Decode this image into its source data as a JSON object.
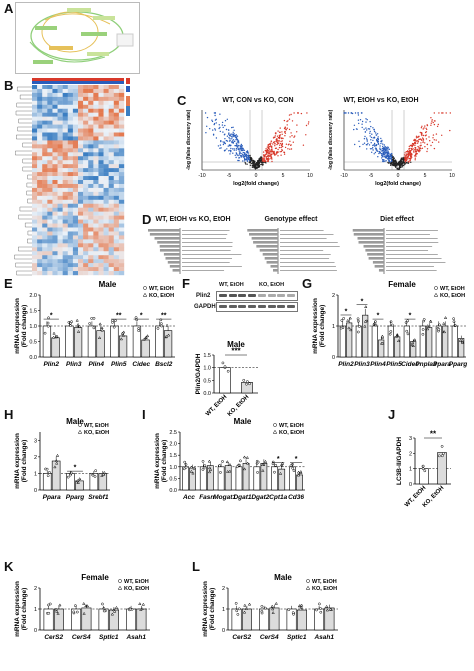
{
  "panels": [
    "A",
    "B",
    "C",
    "D",
    "E",
    "F",
    "G",
    "H",
    "I",
    "J",
    "K",
    "L"
  ],
  "colors": {
    "up": "#d8392b",
    "down": "#2a5dbb",
    "ns": "#222222",
    "heat_hi": "#e4794f",
    "heat_lo": "#3b7ec2",
    "heat_mid": "#ecf2f8"
  },
  "volcano": [
    {
      "title": "WT, CON vs KO, CON",
      "ylabel": "-log (false discovery rate)",
      "xlabel": "log2(fold change)",
      "xticks": [
        "-10",
        "-5",
        "0",
        "5",
        "10"
      ]
    },
    {
      "title": "WT, EtOH vs KO, EtOH",
      "ylabel": "-log (false discovery rate)",
      "xlabel": "log2(fold change)",
      "xticks": [
        "-10",
        "-5",
        "0",
        "5",
        "10"
      ]
    }
  ],
  "go_panels": [
    {
      "title": "WT, EtOH vs KO, EtOH"
    },
    {
      "title": "Genotype effect"
    },
    {
      "title": "Diet effect"
    }
  ],
  "western": {
    "groups": [
      "WT, EtOH",
      "KO, EtOH"
    ],
    "rows": [
      "Plin2",
      "GAPDH"
    ]
  },
  "chart_data": [
    {
      "panel": "E",
      "type": "bar",
      "title": "Male",
      "ylabel": "mRNA expression\n(Fold change)",
      "ylim": [
        0,
        2.0
      ],
      "yticks": [
        "0.0",
        "0.5",
        "1.0",
        "1.5",
        "2.0"
      ],
      "categories": [
        "Plin2",
        "Plin3",
        "Plin4",
        "Plin5",
        "Cidec",
        "Bscl2"
      ],
      "series": [
        {
          "name": "WT, EtOH",
          "values": [
            1.0,
            1.0,
            1.0,
            1.0,
            1.0,
            1.0
          ]
        },
        {
          "name": "KO, EtOH",
          "values": [
            0.62,
            0.95,
            0.85,
            0.68,
            0.55,
            0.85
          ]
        }
      ],
      "sig": [
        "*",
        "",
        "",
        "**",
        "*",
        "**"
      ]
    },
    {
      "panel": "F",
      "type": "bar",
      "title": "Male",
      "ylabel": "Plin2/GAPDH",
      "ylim": [
        0,
        1.5
      ],
      "yticks": [
        "0.0",
        "0.5",
        "1.0",
        "1.5"
      ],
      "categories": [
        "WT, EtOH",
        "KO, EtOH"
      ],
      "values": [
        1.0,
        0.42
      ],
      "sig": "***"
    },
    {
      "panel": "G",
      "type": "bar",
      "title": "Female",
      "ylabel": "mRNA expression\n(Fold change)",
      "ylim": [
        0,
        2.0
      ],
      "yticks": [
        "0",
        "1",
        "2"
      ],
      "categories": [
        "Plin2",
        "Plin3",
        "Plin4",
        "Plin5",
        "Cidec",
        "Pnpla3",
        "Ppara",
        "Pparg"
      ],
      "series": [
        {
          "name": "WT, EtOH",
          "values": [
            1.0,
            1.0,
            1.0,
            1.0,
            1.0,
            1.0,
            1.0,
            1.0
          ]
        },
        {
          "name": "KO, EtOH",
          "values": [
            1.1,
            1.35,
            0.55,
            0.65,
            0.5,
            0.95,
            1.0,
            0.6
          ]
        }
      ],
      "sig": [
        "*",
        "*",
        "*",
        "",
        "*",
        "",
        "",
        ""
      ]
    },
    {
      "panel": "H",
      "type": "bar",
      "title": "Male",
      "ylabel": "mRNA expression\n(Fold change)",
      "ylim": [
        0,
        3.5
      ],
      "yticks": [
        "0",
        "1",
        "2",
        "3"
      ],
      "categories": [
        "Ppara",
        "Pparg",
        "Srebf1"
      ],
      "series": [
        {
          "name": "WT, EtOH",
          "values": [
            1.0,
            1.0,
            1.0
          ]
        },
        {
          "name": "KO, EtOH",
          "values": [
            1.75,
            0.55,
            1.0
          ]
        }
      ],
      "sig": [
        "",
        "*",
        ""
      ]
    },
    {
      "panel": "I",
      "type": "bar",
      "title": "Male",
      "ylabel": "mRNA expression\n(Fold change)",
      "ylim": [
        0,
        2.5
      ],
      "yticks": [
        "0.0",
        "0.5",
        "1.0",
        "1.5",
        "2.0",
        "2.5"
      ],
      "categories": [
        "Acc",
        "Fasn",
        "Mogat1",
        "Dgat1",
        "Dgat2",
        "Cpt1a",
        "Cd36"
      ],
      "series": [
        {
          "name": "WT, EtOH",
          "values": [
            1.0,
            1.0,
            1.0,
            1.0,
            1.0,
            1.0,
            1.0
          ]
        },
        {
          "name": "KO, EtOH",
          "values": [
            0.95,
            1.05,
            1.05,
            1.15,
            1.15,
            0.9,
            0.65
          ]
        }
      ],
      "sig": [
        "",
        "",
        "",
        "",
        "",
        "*",
        "*"
      ]
    },
    {
      "panel": "J",
      "type": "bar",
      "title": "",
      "ylabel": "LC3B-II/GAPDH",
      "ylim": [
        0,
        3
      ],
      "yticks": [
        "0",
        "1",
        "2",
        "3"
      ],
      "categories": [
        "WT, EtOH",
        "KO, EtOH"
      ],
      "values": [
        1.0,
        2.05
      ],
      "sig": "**"
    },
    {
      "panel": "K",
      "type": "bar",
      "title": "Female",
      "ylabel": "mRNA expression\n(Fold change)",
      "ylim": [
        0,
        2.0
      ],
      "yticks": [
        "0",
        "1",
        "2"
      ],
      "categories": [
        "CerS2",
        "CerS4",
        "Sptlc1",
        "Asah1"
      ],
      "series": [
        {
          "name": "WT, EtOH",
          "values": [
            1.0,
            1.0,
            1.0,
            1.0
          ]
        },
        {
          "name": "KO, EtOH",
          "values": [
            1.0,
            1.05,
            0.95,
            1.0
          ]
        }
      ],
      "sig": [
        "",
        "",
        "",
        ""
      ]
    },
    {
      "panel": "L",
      "type": "bar",
      "title": "Male",
      "ylabel": "mRNA expression\n(Fold change)",
      "ylim": [
        0,
        2.0
      ],
      "yticks": [
        "0",
        "1",
        "2"
      ],
      "categories": [
        "CerS2",
        "CerS4",
        "Sptlc1",
        "Asah1"
      ],
      "series": [
        {
          "name": "WT, EtOH",
          "values": [
            1.0,
            1.0,
            1.0,
            1.0
          ]
        },
        {
          "name": "KO, EtOH",
          "values": [
            1.0,
            1.05,
            0.95,
            1.05
          ]
        }
      ],
      "sig": [
        "",
        "",
        "",
        ""
      ]
    }
  ]
}
